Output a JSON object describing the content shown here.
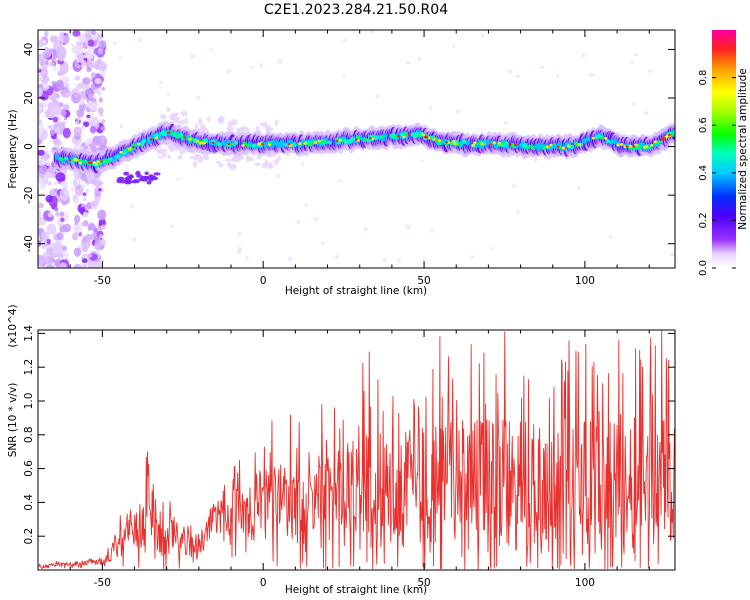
{
  "title": "C2E1.2023.284.21.50.R04",
  "chart_data": [
    {
      "type": "heatmap",
      "xlabel": "Height of straight line (km)",
      "ylabel": "Frequency (Hz)",
      "xlim": [
        -70,
        128
      ],
      "ylim": [
        -50,
        48
      ],
      "x_ticks": [
        -50,
        0,
        50,
        100
      ],
      "y_ticks": [
        -40,
        -20,
        0,
        20,
        40
      ],
      "colorbar": {
        "label": "Normalized spectral amplitude",
        "range": [
          0.0,
          1.0
        ],
        "ticks": [
          "0.0",
          "0.2",
          "0.4",
          "0.6",
          "0.8"
        ],
        "colormap": "rainbow (white-violet-blue-cyan-green-yellow-red-magenta)"
      },
      "ridge_frequency_hz": [
        {
          "x": -63,
          "y": -5
        },
        {
          "x": -58,
          "y": -6
        },
        {
          "x": -52,
          "y": -7
        },
        {
          "x": -46,
          "y": -4
        },
        {
          "x": -40,
          "y": 0
        },
        {
          "x": -35,
          "y": 3
        },
        {
          "x": -30,
          "y": 6
        },
        {
          "x": -25,
          "y": 4
        },
        {
          "x": -20,
          "y": 2
        },
        {
          "x": -10,
          "y": 1
        },
        {
          "x": 0,
          "y": 1
        },
        {
          "x": 10,
          "y": 1
        },
        {
          "x": 20,
          "y": 2
        },
        {
          "x": 30,
          "y": 3
        },
        {
          "x": 40,
          "y": 4
        },
        {
          "x": 48,
          "y": 5
        },
        {
          "x": 55,
          "y": 2
        },
        {
          "x": 65,
          "y": 1
        },
        {
          "x": 75,
          "y": 1
        },
        {
          "x": 85,
          "y": 0
        },
        {
          "x": 95,
          "y": 0
        },
        {
          "x": 105,
          "y": 4
        },
        {
          "x": 112,
          "y": 0
        },
        {
          "x": 120,
          "y": 0
        },
        {
          "x": 128,
          "y": 6
        }
      ]
    },
    {
      "type": "line",
      "xlabel": "Height of straight line (km)",
      "ylabel": "SNR (10 * v/v)",
      "y_multiplier": "(x10^4)",
      "xlim": [
        -70,
        128
      ],
      "ylim": [
        0,
        1.42
      ],
      "x_ticks": [
        -50,
        0,
        50,
        100
      ],
      "y_ticks": [
        "0.2",
        "0.4",
        "0.6",
        "0.8",
        "1.0",
        "1.2",
        "1.4"
      ],
      "color": "#e8312e",
      "envelope": [
        {
          "x": -70,
          "base": 0.02,
          "amp": 0.02
        },
        {
          "x": -50,
          "base": 0.05,
          "amp": 0.03
        },
        {
          "x": -45,
          "base": 0.15,
          "amp": 0.15
        },
        {
          "x": -40,
          "base": 0.28,
          "amp": 0.25
        },
        {
          "x": -36,
          "base": 0.3,
          "amp": 0.38
        },
        {
          "x": -30,
          "base": 0.22,
          "amp": 0.25
        },
        {
          "x": -22,
          "base": 0.15,
          "amp": 0.12
        },
        {
          "x": -18,
          "base": 0.18,
          "amp": 0.15
        },
        {
          "x": -15,
          "base": 0.3,
          "amp": 0.22
        },
        {
          "x": 0,
          "base": 0.38,
          "amp": 0.38
        },
        {
          "x": 20,
          "base": 0.42,
          "amp": 0.55
        },
        {
          "x": 40,
          "base": 0.48,
          "amp": 0.65
        },
        {
          "x": 60,
          "base": 0.5,
          "amp": 0.7
        },
        {
          "x": 80,
          "base": 0.5,
          "amp": 0.72
        },
        {
          "x": 100,
          "base": 0.5,
          "amp": 0.75
        },
        {
          "x": 128,
          "base": 0.5,
          "amp": 0.72
        }
      ],
      "peaks": [
        {
          "x": -36,
          "y": 0.7
        },
        {
          "x": 33,
          "y": 1.29
        },
        {
          "x": 75,
          "y": 1.41
        },
        {
          "x": 98,
          "y": 1.29
        },
        {
          "x": 117,
          "y": 1.3
        },
        {
          "x": 126,
          "y": 1.24
        }
      ]
    }
  ]
}
